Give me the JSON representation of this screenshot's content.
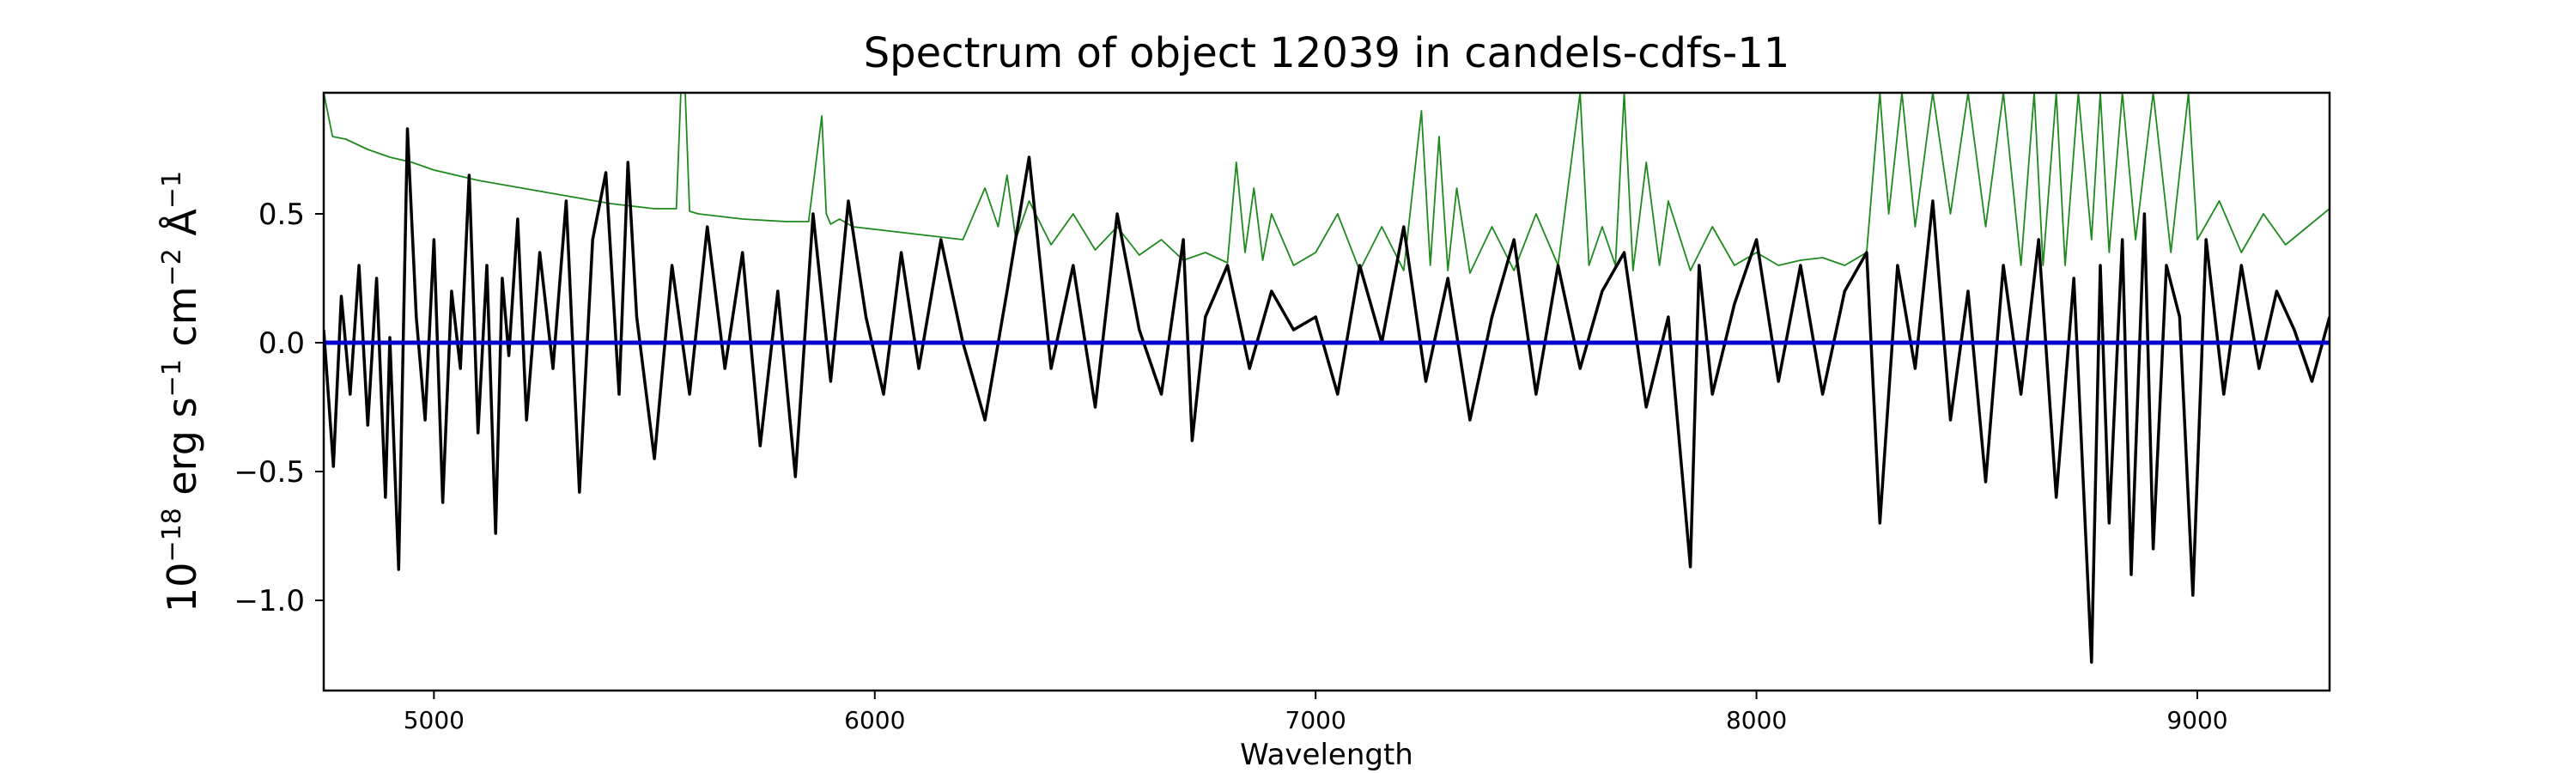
{
  "chart_data": {
    "type": "line",
    "title": "Spectrum of object 12039 in candels-cdfs-11",
    "xlabel": "Wavelength",
    "ylabel": {
      "base": "10",
      "exp1": "−18",
      "unit1": " erg s",
      "exp2": "−1",
      "unit2": " cm",
      "exp3": "−2",
      "unit3": " Å",
      "exp4": "−1"
    },
    "xlim": [
      4750,
      9300
    ],
    "ylim": [
      -1.35,
      0.97
    ],
    "xticks": [
      5000,
      6000,
      7000,
      8000,
      9000
    ],
    "yticks": [
      0.5,
      0.0,
      -0.5,
      -1.0
    ],
    "ytick_labels": [
      "0.5",
      "0.0",
      "−0.5",
      "−1.0"
    ],
    "grid": false,
    "legend": "none",
    "series": [
      {
        "role": "flux",
        "color": "#000000",
        "x": [
          4750,
          4772,
          4790,
          4810,
          4830,
          4850,
          4870,
          4890,
          4900,
          4920,
          4940,
          4960,
          4980,
          5000,
          5020,
          5040,
          5060,
          5080,
          5100,
          5120,
          5140,
          5155,
          5170,
          5190,
          5210,
          5240,
          5270,
          5300,
          5330,
          5360,
          5390,
          5420,
          5440,
          5460,
          5500,
          5540,
          5580,
          5620,
          5660,
          5700,
          5740,
          5780,
          5820,
          5860,
          5900,
          5940,
          5980,
          6020,
          6060,
          6100,
          6150,
          6200,
          6250,
          6300,
          6350,
          6400,
          6450,
          6500,
          6550,
          6600,
          6650,
          6700,
          6720,
          6750,
          6800,
          6850,
          6900,
          6950,
          7000,
          7050,
          7100,
          7150,
          7200,
          7250,
          7300,
          7350,
          7400,
          7450,
          7500,
          7550,
          7600,
          7650,
          7700,
          7750,
          7800,
          7850,
          7870,
          7900,
          7950,
          8000,
          8050,
          8100,
          8150,
          8200,
          8250,
          8280,
          8320,
          8360,
          8400,
          8440,
          8480,
          8520,
          8560,
          8600,
          8640,
          8680,
          8720,
          8760,
          8780,
          8800,
          8830,
          8850,
          8880,
          8900,
          8930,
          8960,
          8990,
          9020,
          9060,
          9100,
          9140,
          9180,
          9220,
          9260,
          9300
        ],
        "y": [
          0.05,
          -0.48,
          0.18,
          -0.2,
          0.3,
          -0.32,
          0.25,
          -0.6,
          0.02,
          -0.88,
          0.83,
          0.1,
          -0.3,
          0.4,
          -0.62,
          0.2,
          -0.1,
          0.65,
          -0.35,
          0.3,
          -0.74,
          0.25,
          -0.05,
          0.48,
          -0.3,
          0.35,
          -0.1,
          0.55,
          -0.58,
          0.4,
          0.66,
          -0.2,
          0.7,
          0.1,
          -0.45,
          0.3,
          -0.2,
          0.45,
          -0.1,
          0.35,
          -0.4,
          0.2,
          -0.52,
          0.5,
          -0.15,
          0.55,
          0.1,
          -0.2,
          0.35,
          -0.1,
          0.4,
          0.0,
          -0.3,
          0.2,
          0.72,
          -0.1,
          0.3,
          -0.25,
          0.5,
          0.05,
          -0.2,
          0.4,
          -0.38,
          0.1,
          0.3,
          -0.1,
          0.2,
          0.05,
          0.1,
          -0.2,
          0.3,
          0.0,
          0.45,
          -0.15,
          0.25,
          -0.3,
          0.1,
          0.4,
          -0.2,
          0.3,
          -0.1,
          0.2,
          0.35,
          -0.25,
          0.1,
          -0.87,
          0.3,
          -0.2,
          0.15,
          0.4,
          -0.15,
          0.3,
          -0.2,
          0.2,
          0.35,
          -0.7,
          0.3,
          -0.1,
          0.55,
          -0.3,
          0.2,
          -0.54,
          0.3,
          -0.2,
          0.4,
          -0.6,
          0.25,
          -1.24,
          0.3,
          -0.7,
          0.4,
          -0.9,
          0.5,
          -0.8,
          0.3,
          0.1,
          -0.98,
          0.4,
          -0.2,
          0.3,
          -0.1,
          0.2,
          0.05,
          -0.15,
          0.1
        ]
      },
      {
        "role": "contamination",
        "color": "#1e8a1e",
        "x": [
          4750,
          4770,
          4800,
          4850,
          4900,
          4950,
          5000,
          5100,
          5200,
          5300,
          5400,
          5500,
          5550,
          5560,
          5570,
          5580,
          5600,
          5700,
          5800,
          5850,
          5880,
          5890,
          5900,
          5920,
          5950,
          6000,
          6100,
          6200,
          6250,
          6280,
          6300,
          6320,
          6350,
          6400,
          6450,
          6500,
          6550,
          6600,
          6650,
          6700,
          6750,
          6800,
          6820,
          6840,
          6860,
          6880,
          6900,
          6950,
          7000,
          7050,
          7100,
          7150,
          7200,
          7240,
          7260,
          7280,
          7300,
          7320,
          7350,
          7400,
          7450,
          7500,
          7550,
          7600,
          7620,
          7650,
          7680,
          7700,
          7720,
          7750,
          7780,
          7800,
          7850,
          7900,
          7950,
          8000,
          8050,
          8100,
          8150,
          8200,
          8250,
          8280,
          8300,
          8330,
          8360,
          8400,
          8440,
          8480,
          8520,
          8560,
          8600,
          8630,
          8650,
          8680,
          8700,
          8730,
          8760,
          8780,
          8800,
          8830,
          8860,
          8900,
          8940,
          8980,
          9000,
          9050,
          9100,
          9150,
          9200,
          9250,
          9300
        ],
        "y": [
          0.97,
          0.8,
          0.79,
          0.75,
          0.72,
          0.7,
          0.67,
          0.63,
          0.6,
          0.57,
          0.54,
          0.52,
          0.52,
          0.97,
          0.97,
          0.51,
          0.5,
          0.48,
          0.47,
          0.47,
          0.88,
          0.5,
          0.46,
          0.48,
          0.45,
          0.44,
          0.42,
          0.4,
          0.6,
          0.45,
          0.65,
          0.4,
          0.55,
          0.38,
          0.5,
          0.36,
          0.45,
          0.34,
          0.4,
          0.32,
          0.35,
          0.31,
          0.7,
          0.35,
          0.6,
          0.32,
          0.5,
          0.3,
          0.35,
          0.5,
          0.28,
          0.45,
          0.28,
          0.9,
          0.3,
          0.8,
          0.28,
          0.6,
          0.27,
          0.45,
          0.28,
          0.5,
          0.3,
          0.97,
          0.3,
          0.45,
          0.3,
          0.97,
          0.28,
          0.7,
          0.3,
          0.55,
          0.28,
          0.45,
          0.3,
          0.35,
          0.3,
          0.32,
          0.33,
          0.3,
          0.35,
          0.97,
          0.5,
          0.97,
          0.45,
          0.97,
          0.5,
          0.97,
          0.45,
          0.97,
          0.3,
          0.97,
          0.3,
          0.97,
          0.3,
          0.97,
          0.4,
          0.97,
          0.35,
          0.97,
          0.4,
          0.97,
          0.35,
          0.97,
          0.4,
          0.55,
          0.35,
          0.5,
          0.38,
          0.45,
          0.52
        ]
      },
      {
        "role": "model",
        "color": "#0000cc",
        "x": [
          4750,
          9300
        ],
        "y": [
          0.0,
          0.0
        ]
      }
    ]
  }
}
